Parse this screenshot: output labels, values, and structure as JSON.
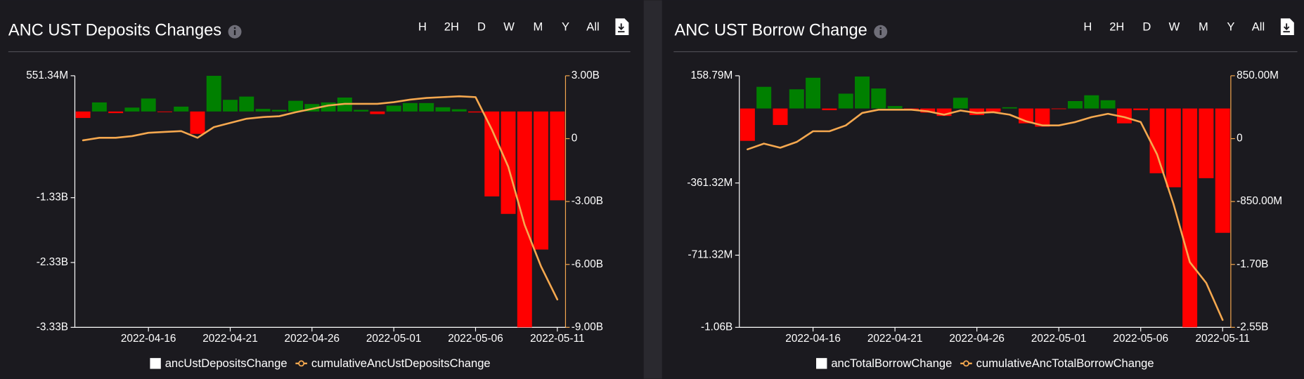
{
  "toolbar": [
    "H",
    "2H",
    "D",
    "W",
    "M",
    "Y",
    "All"
  ],
  "chart_data": [
    {
      "type": "bar-line",
      "title": "ANC UST Deposits Changes",
      "categories": [
        null,
        null,
        null,
        null,
        "2022-04-16",
        null,
        null,
        null,
        null,
        "2022-04-21",
        null,
        null,
        null,
        null,
        "2022-04-26",
        null,
        null,
        null,
        null,
        "2022-05-01",
        null,
        null,
        null,
        null,
        "2022-05-06",
        null,
        null,
        null,
        null,
        "2022-05-11"
      ],
      "series": [
        {
          "name": "ancUstDepositsChange",
          "kind": "bar",
          "color": "#008000",
          "negative_color": "#ff0000",
          "legend_color": "#ffffff",
          "values": [
            -100000000,
            140000000,
            -25000000,
            60000000,
            200000000,
            -10000000,
            75000000,
            -345000000,
            550000000,
            180000000,
            230000000,
            40000000,
            25000000,
            165000000,
            115000000,
            140000000,
            215000000,
            25000000,
            -40000000,
            90000000,
            130000000,
            130000000,
            65000000,
            35000000,
            -15000000,
            -1310000000,
            -1580000000,
            -3330000000,
            -2130000000,
            -1370000000
          ]
        },
        {
          "name": "cumulativeAncUstDepositsChange",
          "kind": "line",
          "axis": "y2",
          "color": "#f5a84f",
          "values": [
            -80000000,
            40000000,
            40000000,
            120000000,
            280000000,
            320000000,
            360000000,
            40000000,
            550000000,
            750000000,
            950000000,
            1030000000,
            1070000000,
            1260000000,
            1420000000,
            1580000000,
            1660000000,
            1660000000,
            1660000000,
            1740000000,
            1860000000,
            1940000000,
            1980000000,
            2020000000,
            1980000000,
            430000000,
            -1340000000,
            -4110000000,
            -6090000000,
            -7670000000
          ]
        }
      ],
      "ylim": [
        -3330000000,
        551340000
      ],
      "yticks": [
        {
          "value": 551340000,
          "label": "551.34M"
        },
        {
          "value": -1330000000,
          "label": "-1.33B"
        },
        {
          "value": -2330000000,
          "label": "-2.33B"
        },
        {
          "value": -3330000000,
          "label": "-3.33B"
        }
      ],
      "y2lim": [
        -9000000000,
        3000000000
      ],
      "y2ticks": [
        {
          "value": 3000000000,
          "label": "3.00B"
        },
        0,
        {
          "value": -3000000000,
          "label": "-3.00B"
        },
        {
          "value": -6000000000,
          "label": "-6.00B"
        },
        {
          "value": -9000000000,
          "label": "-9.00B"
        }
      ],
      "y2_color": "#f5a84f",
      "grid": false,
      "legend": "bottom"
    },
    {
      "type": "bar-line",
      "title": "ANC UST Borrow Change",
      "categories": [
        null,
        null,
        null,
        null,
        "2022-04-16",
        null,
        null,
        null,
        null,
        "2022-04-21",
        null,
        null,
        null,
        null,
        "2022-04-26",
        null,
        null,
        null,
        null,
        "2022-05-01",
        null,
        null,
        null,
        null,
        "2022-05-06",
        null,
        null,
        null,
        null,
        "2022-05-11"
      ],
      "series": [
        {
          "name": "ancTotalBorrowChange",
          "kind": "bar",
          "color": "#008000",
          "negative_color": "#ff0000",
          "legend_color": "#ffffff",
          "values": [
            -157000000,
            105000000,
            -80000000,
            93000000,
            149000000,
            -8000000,
            72000000,
            155000000,
            97000000,
            12000000,
            -8000000,
            -20000000,
            -36000000,
            52000000,
            -32000000,
            -16000000,
            6000000,
            -72000000,
            -88000000,
            -3000000,
            36000000,
            64000000,
            40000000,
            -72000000,
            -8000000,
            -314000000,
            -382000000,
            -1061000000,
            -338000000,
            -603000000
          ]
        },
        {
          "name": "cumulativeAncTotalBorrowChange",
          "kind": "line",
          "axis": "y2",
          "color": "#f5a84f",
          "values": [
            -145000000,
            -67000000,
            -123000000,
            -45000000,
            100000000,
            100000000,
            179000000,
            347000000,
            391000000,
            391000000,
            391000000,
            369000000,
            324000000,
            380000000,
            347000000,
            358000000,
            324000000,
            235000000,
            179000000,
            179000000,
            224000000,
            291000000,
            336000000,
            291000000,
            224000000,
            -213000000,
            -883000000,
            -1670000000,
            -1950000000,
            -2450000000
          ]
        }
      ],
      "ylim": [
        -1061320000,
        158790000
      ],
      "yticks": [
        {
          "value": 158790000,
          "label": "158.79M"
        },
        {
          "value": -361320000,
          "label": "-361.32M"
        },
        {
          "value": -711320000,
          "label": "-711.32M"
        },
        {
          "value": -1061320000,
          "label": "-1.06B"
        }
      ],
      "y2lim": [
        -2550000000,
        850000000
      ],
      "y2ticks": [
        {
          "value": 850000000,
          "label": "850.00M"
        },
        0,
        {
          "value": -850000000,
          "label": "-850.00M"
        },
        {
          "value": -1700000000,
          "label": "-1.70B"
        },
        {
          "value": -2550000000,
          "label": "-2.55B"
        }
      ],
      "y2_color": "#f5a84f",
      "grid": false,
      "legend": "bottom"
    }
  ]
}
